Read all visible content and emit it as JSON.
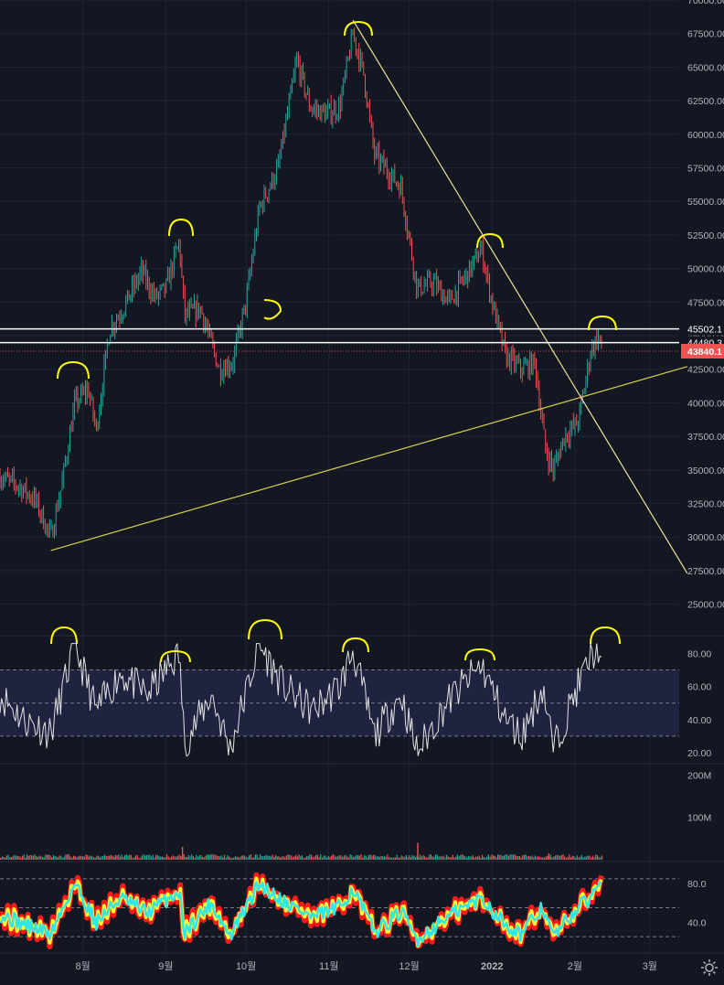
{
  "colors": {
    "background": "#131722",
    "grid": "#1f2433",
    "up_candle": "#26a69a",
    "down_candle": "#ef5350",
    "trendline": "#e8e39a",
    "support_line": "#d6d24a",
    "annotation": "#ffff00",
    "rsi_line": "#e0e0e0",
    "rsi_band": "#1f2340",
    "level_line": "#ffffff",
    "current_price_bg": "#ef5350",
    "axis_text": "#b2b5be",
    "osc_red": "#ff1a1a",
    "osc_yellow": "#ffff33",
    "osc_cyan": "#33e6e6"
  },
  "price_labels": {
    "level_1": "45502.1",
    "level_2": "44480.3",
    "current": "43840.1"
  },
  "volume_axis": [
    "200M",
    "100M"
  ],
  "rsi_axis": [
    "80.00",
    "60.00",
    "40.00",
    "20.00"
  ],
  "osc_axis": [
    "80.0",
    "40.0"
  ],
  "chart_data": [
    {
      "type": "candlestick",
      "title": "",
      "x_ticks": [
        "8월",
        "9월",
        "10월",
        "11월",
        "12월",
        "2022",
        "2월",
        "3월"
      ],
      "y_ticks": [
        70000,
        67500,
        65000,
        62500,
        60000,
        57500,
        55000,
        52500,
        50000,
        47500,
        45000,
        42500,
        40000,
        37500,
        35000,
        32500,
        30000,
        27500,
        25000
      ],
      "ylim": [
        23000,
        70000
      ],
      "close_path": [
        {
          "x": "2021-07-01",
          "y": 34500
        },
        {
          "x": "2021-07-08",
          "y": 33800
        },
        {
          "x": "2021-07-14",
          "y": 32800
        },
        {
          "x": "2021-07-20",
          "y": 30000
        },
        {
          "x": "2021-07-24",
          "y": 33800
        },
        {
          "x": "2021-07-29",
          "y": 40000
        },
        {
          "x": "2021-08-03",
          "y": 41000
        },
        {
          "x": "2021-08-06",
          "y": 38000
        },
        {
          "x": "2021-08-11",
          "y": 45500
        },
        {
          "x": "2021-08-16",
          "y": 47000
        },
        {
          "x": "2021-08-23",
          "y": 49800
        },
        {
          "x": "2021-08-28",
          "y": 47800
        },
        {
          "x": "2021-09-01",
          "y": 48500
        },
        {
          "x": "2021-09-06",
          "y": 52000
        },
        {
          "x": "2021-09-08",
          "y": 46500
        },
        {
          "x": "2021-09-14",
          "y": 47000
        },
        {
          "x": "2021-09-21",
          "y": 42500
        },
        {
          "x": "2021-09-26",
          "y": 43000
        },
        {
          "x": "2021-10-01",
          "y": 47500
        },
        {
          "x": "2021-10-06",
          "y": 54500
        },
        {
          "x": "2021-10-13",
          "y": 57500
        },
        {
          "x": "2021-10-20",
          "y": 65500
        },
        {
          "x": "2021-10-25",
          "y": 62000
        },
        {
          "x": "2021-10-31",
          "y": 61500
        },
        {
          "x": "2021-11-05",
          "y": 62000
        },
        {
          "x": "2021-11-10",
          "y": 67500
        },
        {
          "x": "2021-11-14",
          "y": 64500
        },
        {
          "x": "2021-11-18",
          "y": 58500
        },
        {
          "x": "2021-11-24",
          "y": 57000
        },
        {
          "x": "2021-11-28",
          "y": 56000
        },
        {
          "x": "2021-12-04",
          "y": 48500
        },
        {
          "x": "2021-12-10",
          "y": 49000
        },
        {
          "x": "2021-12-16",
          "y": 47500
        },
        {
          "x": "2021-12-24",
          "y": 50000
        },
        {
          "x": "2021-12-28",
          "y": 51500
        },
        {
          "x": "2022-01-01",
          "y": 47500
        },
        {
          "x": "2022-01-06",
          "y": 43500
        },
        {
          "x": "2022-01-12",
          "y": 42500
        },
        {
          "x": "2022-01-17",
          "y": 43000
        },
        {
          "x": "2022-01-21",
          "y": 36500
        },
        {
          "x": "2022-01-24",
          "y": 35000
        },
        {
          "x": "2022-01-28",
          "y": 37500
        },
        {
          "x": "2022-02-02",
          "y": 38500
        },
        {
          "x": "2022-02-04",
          "y": 40500
        },
        {
          "x": "2022-02-07",
          "y": 44000
        },
        {
          "x": "2022-02-10",
          "y": 45000
        },
        {
          "x": "2022-02-11",
          "y": 43840.1
        }
      ],
      "horizontal_levels": [
        45502.1,
        44480.3
      ],
      "current_price": 43840.1,
      "trendlines": [
        {
          "name": "",
          "points": [
            {
              "x": "2021-07-20",
              "y": 29000
            },
            {
              "x": "2022-03-15",
              "y": 42700
            }
          ]
        },
        {
          "name": "",
          "points": [
            {
              "x": "2021-11-10",
              "y": 68500
            },
            {
              "x": "2022-03-15",
              "y": 27300
            }
          ]
        }
      ]
    },
    {
      "type": "line",
      "title": "",
      "ylim": [
        15,
        88
      ],
      "bands": [
        30,
        50,
        70
      ],
      "y_ticks": [
        80,
        60,
        40,
        20
      ],
      "path": [
        {
          "x": "2021-07-01",
          "y": 55
        },
        {
          "x": "2021-07-10",
          "y": 40
        },
        {
          "x": "2021-07-20",
          "y": 32
        },
        {
          "x": "2021-07-29",
          "y": 85
        },
        {
          "x": "2021-08-06",
          "y": 45
        },
        {
          "x": "2021-08-15",
          "y": 68
        },
        {
          "x": "2021-08-25",
          "y": 55
        },
        {
          "x": "2021-09-06",
          "y": 80
        },
        {
          "x": "2021-09-08",
          "y": 25
        },
        {
          "x": "2021-09-18",
          "y": 55
        },
        {
          "x": "2021-09-25",
          "y": 22
        },
        {
          "x": "2021-10-06",
          "y": 85
        },
        {
          "x": "2021-10-15",
          "y": 60
        },
        {
          "x": "2021-10-26",
          "y": 45
        },
        {
          "x": "2021-11-05",
          "y": 60
        },
        {
          "x": "2021-11-10",
          "y": 82
        },
        {
          "x": "2021-11-18",
          "y": 30
        },
        {
          "x": "2021-11-28",
          "y": 55
        },
        {
          "x": "2021-12-04",
          "y": 20
        },
        {
          "x": "2021-12-15",
          "y": 50
        },
        {
          "x": "2021-12-28",
          "y": 73
        },
        {
          "x": "2022-01-06",
          "y": 40
        },
        {
          "x": "2022-01-12",
          "y": 30
        },
        {
          "x": "2022-01-20",
          "y": 60
        },
        {
          "x": "2022-01-24",
          "y": 22
        },
        {
          "x": "2022-02-02",
          "y": 60
        },
        {
          "x": "2022-02-07",
          "y": 78
        },
        {
          "x": "2022-02-10",
          "y": 85
        },
        {
          "x": "2022-02-11",
          "y": 68
        }
      ]
    },
    {
      "type": "bar",
      "title": "",
      "ylim": [
        0,
        220000000
      ],
      "y_ticks": [
        "200M",
        "100M"
      ],
      "spikes": [
        {
          "x": "2021-09-07",
          "y": 30000000
        },
        {
          "x": "2021-12-04",
          "y": 40000000
        },
        {
          "x": "2022-01-22",
          "y": 15000000
        }
      ]
    },
    {
      "type": "line",
      "title": "",
      "ylim": [
        10,
        100
      ],
      "bands": [
        25,
        55,
        85
      ],
      "y_ticks": [
        80,
        40
      ],
      "path": [
        {
          "x": "2021-07-01",
          "y": 48
        },
        {
          "x": "2021-07-10",
          "y": 38
        },
        {
          "x": "2021-07-20",
          "y": 28
        },
        {
          "x": "2021-07-29",
          "y": 80
        },
        {
          "x": "2021-08-06",
          "y": 40
        },
        {
          "x": "2021-08-15",
          "y": 65
        },
        {
          "x": "2021-08-25",
          "y": 50
        },
        {
          "x": "2021-09-06",
          "y": 72
        },
        {
          "x": "2021-09-08",
          "y": 30
        },
        {
          "x": "2021-09-18",
          "y": 60
        },
        {
          "x": "2021-09-25",
          "y": 25
        },
        {
          "x": "2021-10-06",
          "y": 80
        },
        {
          "x": "2021-10-15",
          "y": 62
        },
        {
          "x": "2021-10-26",
          "y": 45
        },
        {
          "x": "2021-11-05",
          "y": 55
        },
        {
          "x": "2021-11-10",
          "y": 75
        },
        {
          "x": "2021-11-18",
          "y": 30
        },
        {
          "x": "2021-11-28",
          "y": 50
        },
        {
          "x": "2021-12-04",
          "y": 22
        },
        {
          "x": "2021-12-15",
          "y": 45
        },
        {
          "x": "2021-12-28",
          "y": 65
        },
        {
          "x": "2022-01-06",
          "y": 38
        },
        {
          "x": "2022-01-12",
          "y": 28
        },
        {
          "x": "2022-01-20",
          "y": 55
        },
        {
          "x": "2022-01-24",
          "y": 25
        },
        {
          "x": "2022-02-02",
          "y": 55
        },
        {
          "x": "2022-02-07",
          "y": 65
        },
        {
          "x": "2022-02-10",
          "y": 85
        },
        {
          "x": "2022-02-11",
          "y": 80
        }
      ]
    }
  ]
}
